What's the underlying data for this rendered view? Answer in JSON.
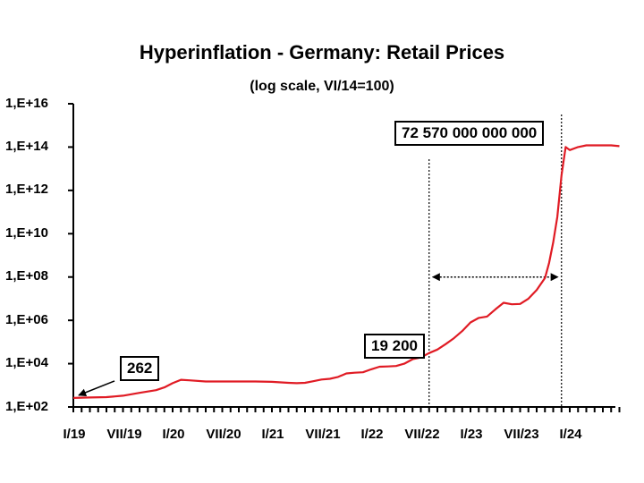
{
  "chart_data": {
    "type": "line",
    "title": "Hyperinflation - Germany: Retail Prices",
    "subtitle": "(log scale,  VI/14=100)",
    "yscale": "log",
    "ylim": [
      100,
      1e+16
    ],
    "ytick_labels": [
      "1,E+02",
      "1,E+04",
      "1,E+06",
      "1,E+08",
      "1,E+10",
      "1,E+12",
      "1,E+14",
      "1,E+16"
    ],
    "ytick_values": [
      100.0,
      10000.0,
      1000000.0,
      100000000.0,
      10000000000.0,
      1000000000000.0,
      100000000000000.0,
      1e+16
    ],
    "xlim": [
      0,
      66
    ],
    "xtick_labels": [
      "I/19",
      "VII/19",
      "I/20",
      "VII/20",
      "I/21",
      "VII/21",
      "I/22",
      "VII/22",
      "I/23",
      "VII/23",
      "I/24"
    ],
    "xtick_positions": [
      0,
      6,
      12,
      18,
      24,
      30,
      36,
      42,
      48,
      54,
      60
    ],
    "series": [
      {
        "name": "Retail prices",
        "color": "#e01b24",
        "x": [
          0,
          2,
          4,
          6,
          8,
          10,
          11,
          12,
          13,
          14,
          16,
          18,
          20,
          22,
          24,
          26,
          27,
          28,
          29,
          30,
          31,
          32,
          33,
          34,
          35,
          36,
          37,
          38,
          39,
          40,
          41,
          42,
          43,
          44,
          45,
          46,
          47,
          48,
          49,
          50,
          51,
          52,
          53,
          54,
          55,
          56,
          57,
          57.5,
          58,
          58.5,
          59,
          59.5,
          60,
          61,
          62,
          63,
          64,
          65,
          66
        ],
        "values": [
          262,
          275,
          285,
          330,
          450,
          600,
          800,
          1250,
          1800,
          1700,
          1500,
          1500,
          1500,
          1500,
          1450,
          1300,
          1250,
          1300,
          1550,
          1850,
          2000,
          2450,
          3550,
          3800,
          4000,
          5500,
          7200,
          7400,
          7800,
          10000,
          16000,
          19200,
          31000,
          45000,
          80000,
          150000,
          320000,
          800000,
          1300000,
          1500000,
          3200000,
          6500000,
          5500000,
          5700000,
          10000000,
          25000000,
          90000000,
          450000000,
          4000000000,
          60000000000,
          5000000000000,
          100000000000000,
          72570000000000,
          100000000000000,
          120000000000000,
          120000000000000,
          120000000000000,
          120000000000000,
          110000000000000
        ]
      }
    ],
    "annotations": [
      {
        "text": "262",
        "points_to": {
          "x": 0,
          "y": 262
        }
      },
      {
        "text": "19 200",
        "points_to": {
          "x": 42,
          "y": 19200
        }
      },
      {
        "text": "72 570 000 000 000",
        "points_to": {
          "x": 60,
          "y": 72570000000000
        }
      }
    ],
    "vertical_lines_at_x": [
      43,
      59
    ],
    "span_arrow": {
      "from_x": 43,
      "to_x": 59,
      "y": 100000000.0
    }
  }
}
